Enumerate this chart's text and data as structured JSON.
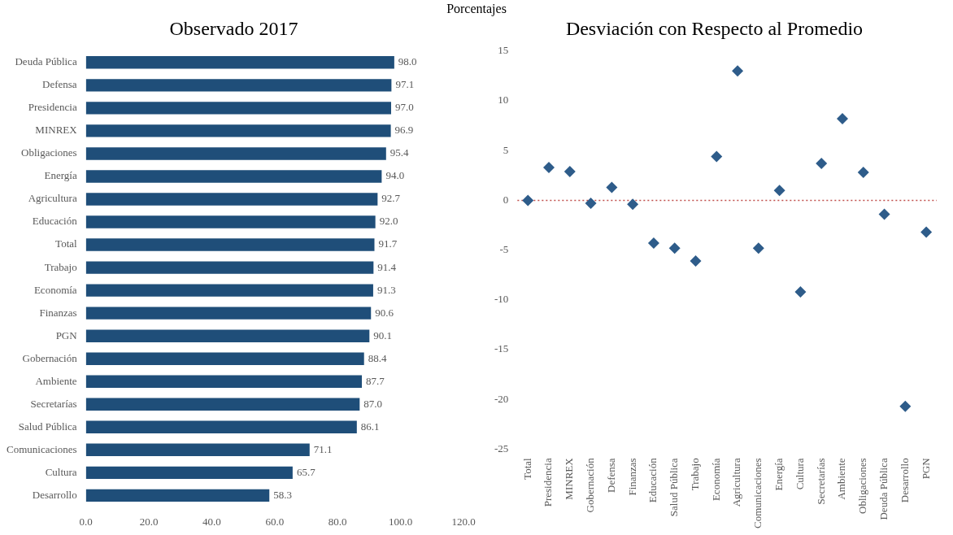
{
  "chart_data": [
    {
      "type": "bar",
      "orientation": "horizontal",
      "title": "Observado 2017",
      "subtitle": "Porcentajes",
      "categories": [
        "Deuda Pública",
        "Defensa",
        "Presidencia",
        "MINREX",
        "Obligaciones",
        "Energía",
        "Agricultura",
        "Educación",
        "Total",
        "Trabajo",
        "Economía",
        "Finanzas",
        "PGN",
        "Gobernación",
        "Ambiente",
        "Secretarías",
        "Salud Pública",
        "Comunicaciones",
        "Cultura",
        "Desarrollo"
      ],
      "values": [
        98.0,
        97.1,
        97.0,
        96.9,
        95.4,
        94.0,
        92.7,
        92.0,
        91.7,
        91.4,
        91.3,
        90.6,
        90.1,
        88.4,
        87.7,
        87.0,
        86.1,
        71.1,
        65.7,
        58.3
      ],
      "value_labels": [
        "98.0",
        "97.1",
        "97.0",
        "96.9",
        "95.4",
        "94.0",
        "92.7",
        "92.0",
        "91.7",
        "91.4",
        "91.3",
        "90.6",
        "90.1",
        "88.4",
        "87.7",
        "87.0",
        "86.1",
        "71.1",
        "65.7",
        "58.3"
      ],
      "color": "#1f4e79",
      "xlim": [
        0,
        120
      ],
      "xticks": [
        {
          "value": 0,
          "label": "0.0"
        },
        {
          "value": 20,
          "label": "20.0"
        },
        {
          "value": 40,
          "label": "40.0"
        },
        {
          "value": 60,
          "label": "60.0"
        },
        {
          "value": 80,
          "label": "80.0"
        },
        {
          "value": 100,
          "label": "100.0"
        },
        {
          "value": 120,
          "label": "120.0"
        }
      ]
    },
    {
      "type": "scatter",
      "title": "Desviación con Respecto al Promedio",
      "marker": "diamond",
      "categories": [
        "Total",
        "Presidencia",
        "MINREX",
        "Gobernación",
        "Defensa",
        "Finanzas",
        "Educación",
        "Salud Pública",
        "Trabajo",
        "Economía",
        "Agricultura",
        "Comunicaciones",
        "Energía",
        "Cultura",
        "Secretarías",
        "Ambiente",
        "Obligaciones",
        "Deuda Pública",
        "Desarrollo",
        "PGN"
      ],
      "values": [
        0,
        3.3,
        2.9,
        -0.3,
        1.3,
        -0.4,
        -4.3,
        -4.8,
        -6.1,
        4.4,
        13.0,
        -4.8,
        1.0,
        -9.2,
        3.7,
        8.2,
        2.8,
        -1.4,
        -20.7,
        -3.2
      ],
      "color": "#2e5c8a",
      "ylim": [
        -25,
        15
      ],
      "yticks": [
        -25,
        -20,
        -15,
        -10,
        -5,
        0,
        5,
        10,
        15
      ],
      "ref_lines": [
        {
          "axis": "y",
          "value": 0,
          "color": "#c0504d",
          "line_style": "dotted"
        }
      ]
    }
  ]
}
